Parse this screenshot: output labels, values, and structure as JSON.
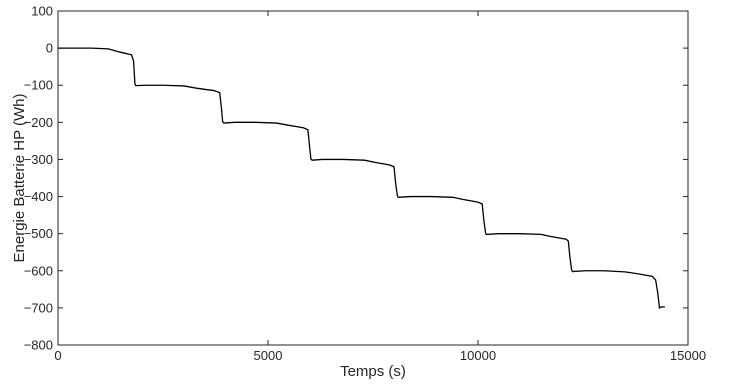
{
  "chart_data": {
    "type": "line",
    "title": "",
    "xlabel": "Temps (s)",
    "ylabel": "Energie Batterie HP (Wh)",
    "xlim": [
      0,
      15000
    ],
    "ylim": [
      -800,
      100
    ],
    "x_ticks": [
      0,
      5000,
      10000,
      15000
    ],
    "y_ticks": [
      100,
      0,
      -100,
      -200,
      -300,
      -400,
      -500,
      -600,
      -700,
      -800
    ],
    "grid": false,
    "line_color": "#000000",
    "series": [
      {
        "x": [
          0,
          300,
          800,
          1200,
          1450,
          1600,
          1750,
          1800,
          1830,
          1850,
          2100,
          2500,
          3000,
          3300,
          3550,
          3700,
          3850,
          3890,
          3920,
          3950,
          4200,
          4700,
          5200,
          5500,
          5700,
          5850,
          5950,
          5990,
          6020,
          6050,
          6300,
          6800,
          7300,
          7550,
          7750,
          7900,
          8000,
          8040,
          8080,
          8100,
          8400,
          8900,
          9400,
          9650,
          9850,
          10000,
          10100,
          10140,
          10180,
          10200,
          10500,
          11000,
          11500,
          11750,
          11950,
          12100,
          12150,
          12190,
          12230,
          12250,
          12550,
          13000,
          13500,
          13800,
          14000,
          14150,
          14230,
          14280,
          14320,
          14350,
          14450
        ],
        "y": [
          0,
          0,
          0,
          -2,
          -10,
          -14,
          -18,
          -35,
          -95,
          -101,
          -100,
          -100,
          -102,
          -108,
          -112,
          -114,
          -120,
          -160,
          -198,
          -202,
          -200,
          -200,
          -202,
          -208,
          -212,
          -215,
          -220,
          -265,
          -298,
          -302,
          -300,
          -300,
          -302,
          -308,
          -312,
          -315,
          -320,
          -365,
          -398,
          -402,
          -400,
          -400,
          -402,
          -408,
          -412,
          -415,
          -420,
          -465,
          -498,
          -502,
          -500,
          -500,
          -502,
          -508,
          -512,
          -515,
          -520,
          -565,
          -598,
          -602,
          -600,
          -600,
          -603,
          -608,
          -612,
          -615,
          -625,
          -660,
          -700,
          -698,
          -697
        ]
      }
    ]
  }
}
